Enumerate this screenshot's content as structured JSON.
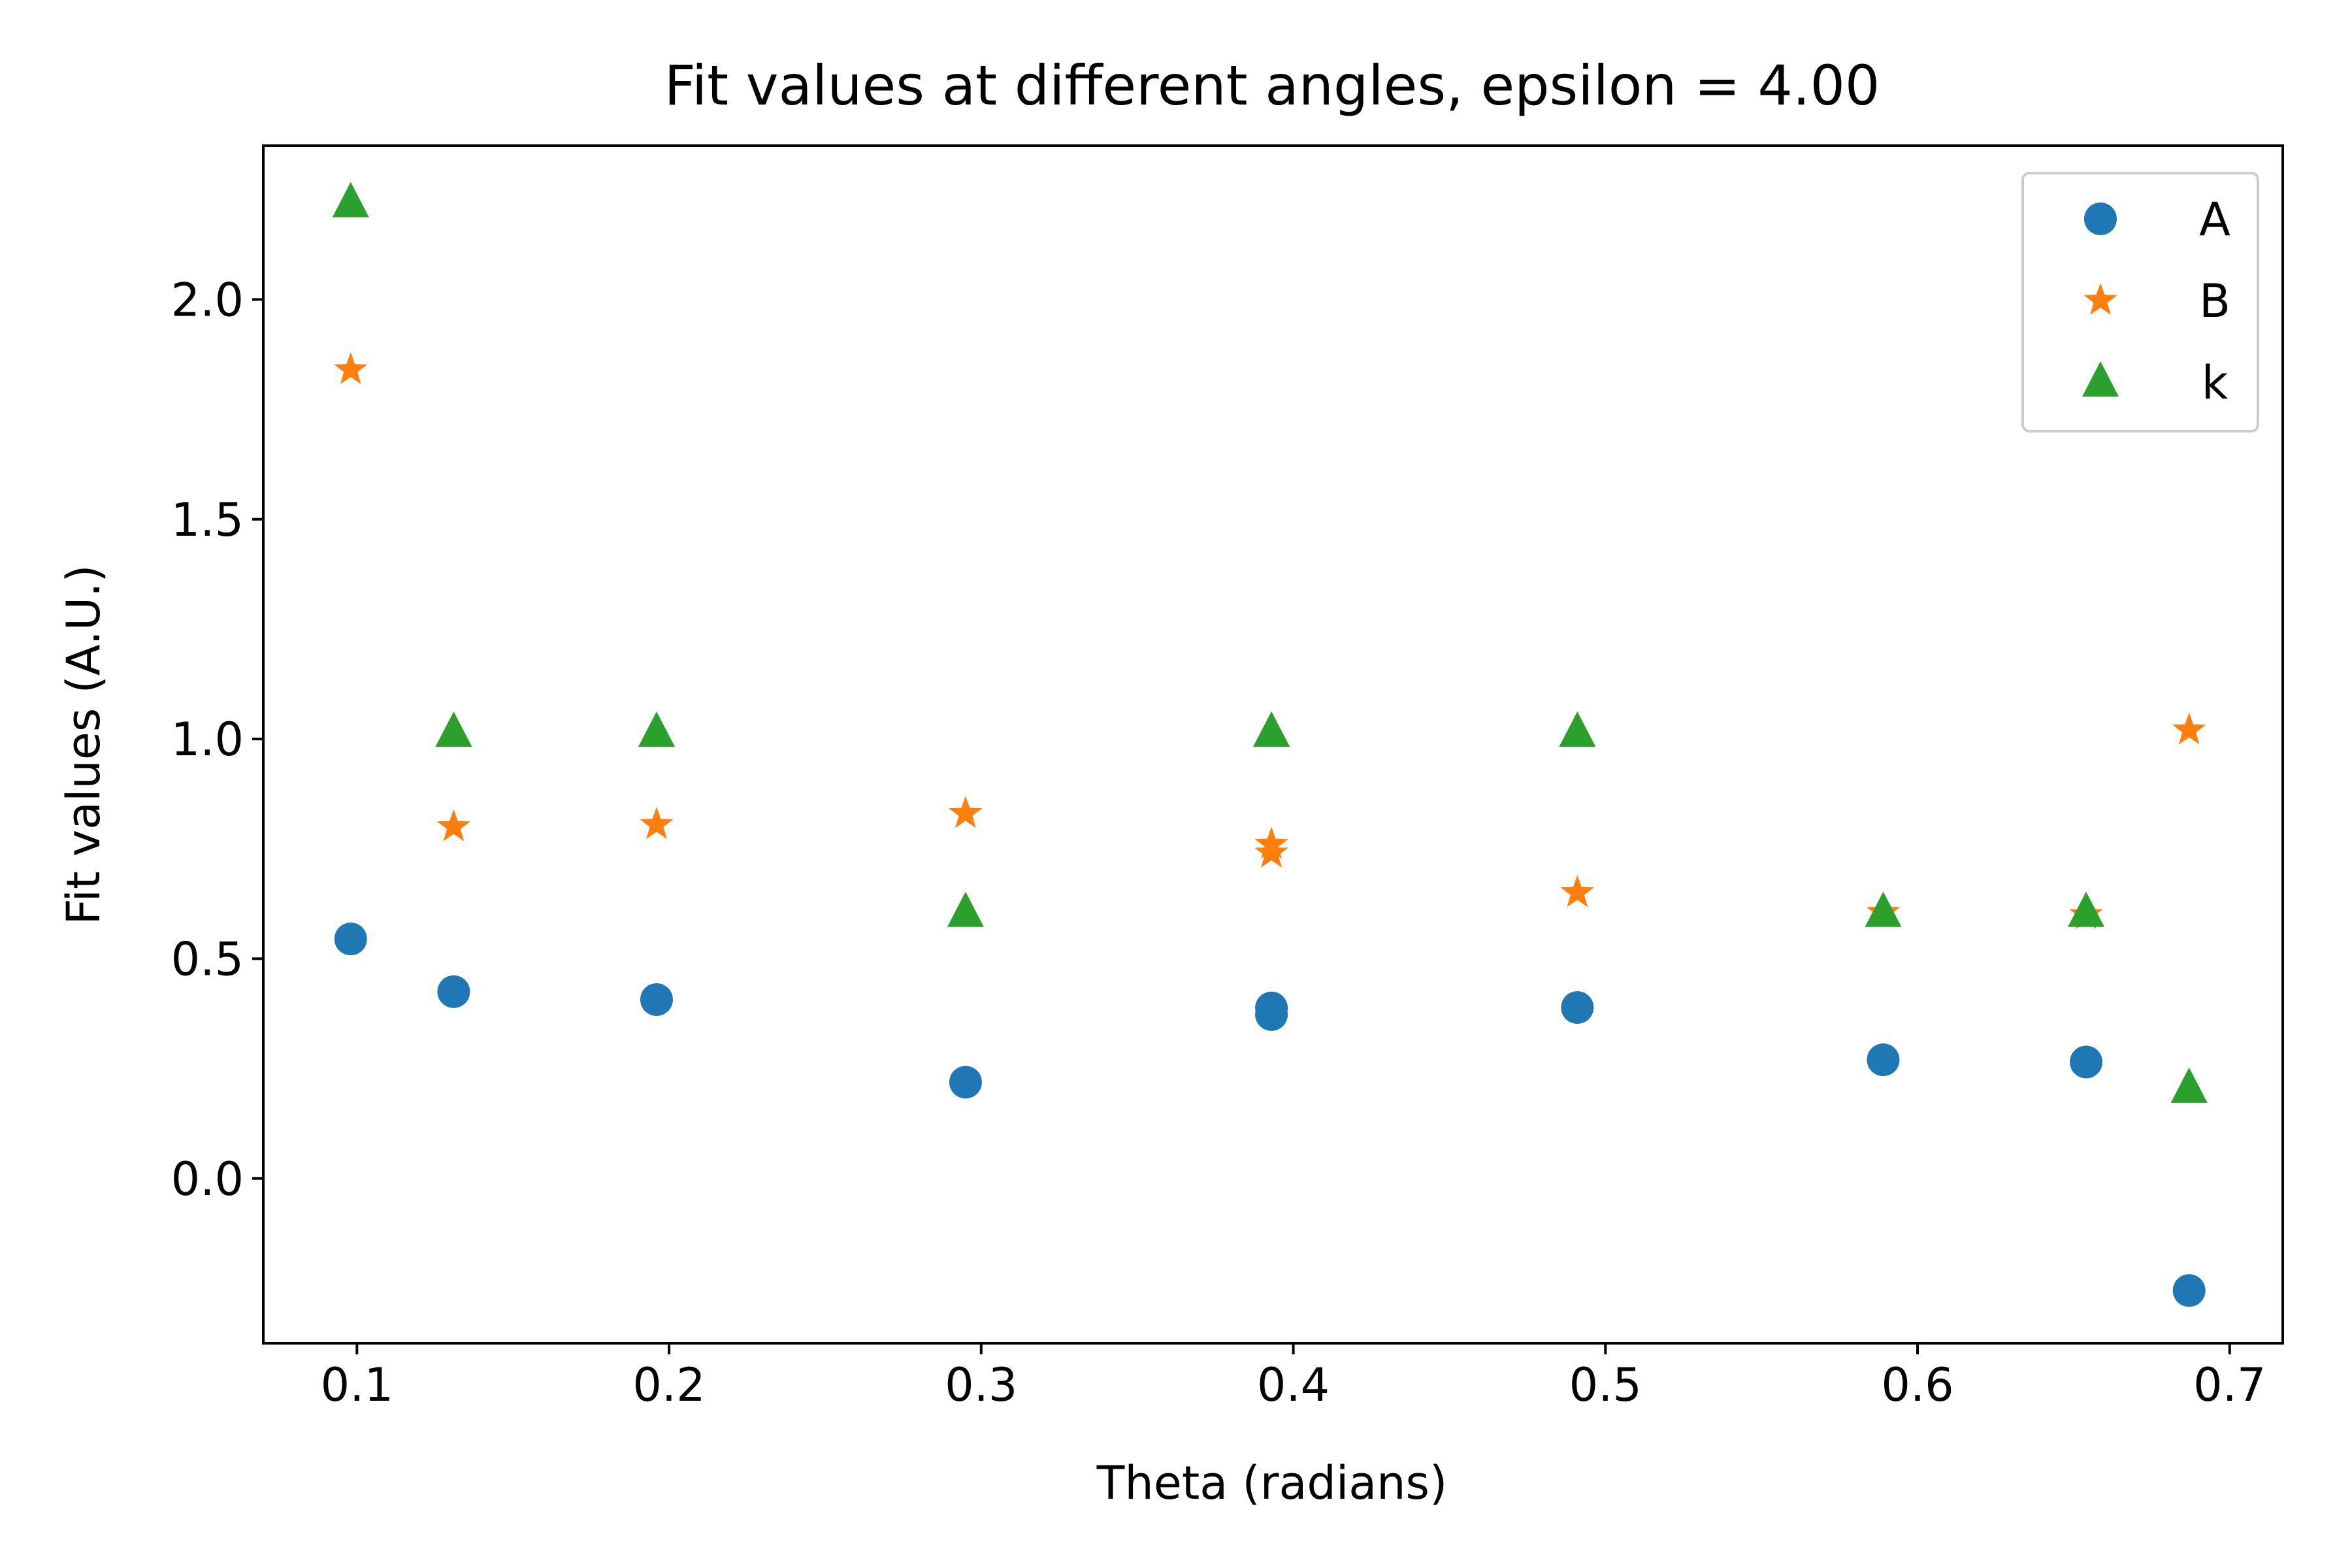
{
  "chart_data": {
    "type": "scatter",
    "title": "Fit values at different angles, epsilon = 4.00",
    "xlabel": "Theta (radians)",
    "ylabel": "Fit values (A.U.)",
    "xlim": [
      0.07,
      0.717
    ],
    "ylim": [
      -0.375,
      2.35
    ],
    "xticks": [
      0.1,
      0.2,
      0.3,
      0.4,
      0.5,
      0.6,
      0.7
    ],
    "xtick_labels": [
      "0.1",
      "0.2",
      "0.3",
      "0.4",
      "0.5",
      "0.6",
      "0.7"
    ],
    "yticks": [
      0.0,
      0.5,
      1.0,
      1.5,
      2.0
    ],
    "ytick_labels": [
      "0.0",
      "0.5",
      "1.0",
      "1.5",
      "2.0"
    ],
    "grid": false,
    "legend_position": "top-right",
    "x": [
      0.098,
      0.131,
      0.196,
      0.295,
      0.393,
      0.393,
      0.491,
      0.589,
      0.654,
      0.687
    ],
    "series": [
      {
        "name": "A",
        "marker": "circle",
        "color": "#1f77b4",
        "values": [
          0.545,
          0.425,
          0.407,
          0.219,
          0.388,
          0.373,
          0.389,
          0.27,
          0.265,
          -0.255
        ]
      },
      {
        "name": "B",
        "marker": "star",
        "color": "#ff7f0e",
        "values": [
          1.84,
          0.8,
          0.805,
          0.83,
          0.76,
          0.74,
          0.65,
          0.605,
          0.6,
          1.02
        ]
      },
      {
        "name": "k",
        "marker": "triangle",
        "color": "#2ca02c",
        "values": [
          2.22,
          1.015,
          1.015,
          0.605,
          1.015,
          1.015,
          1.015,
          0.605,
          0.605,
          0.205
        ]
      }
    ]
  }
}
